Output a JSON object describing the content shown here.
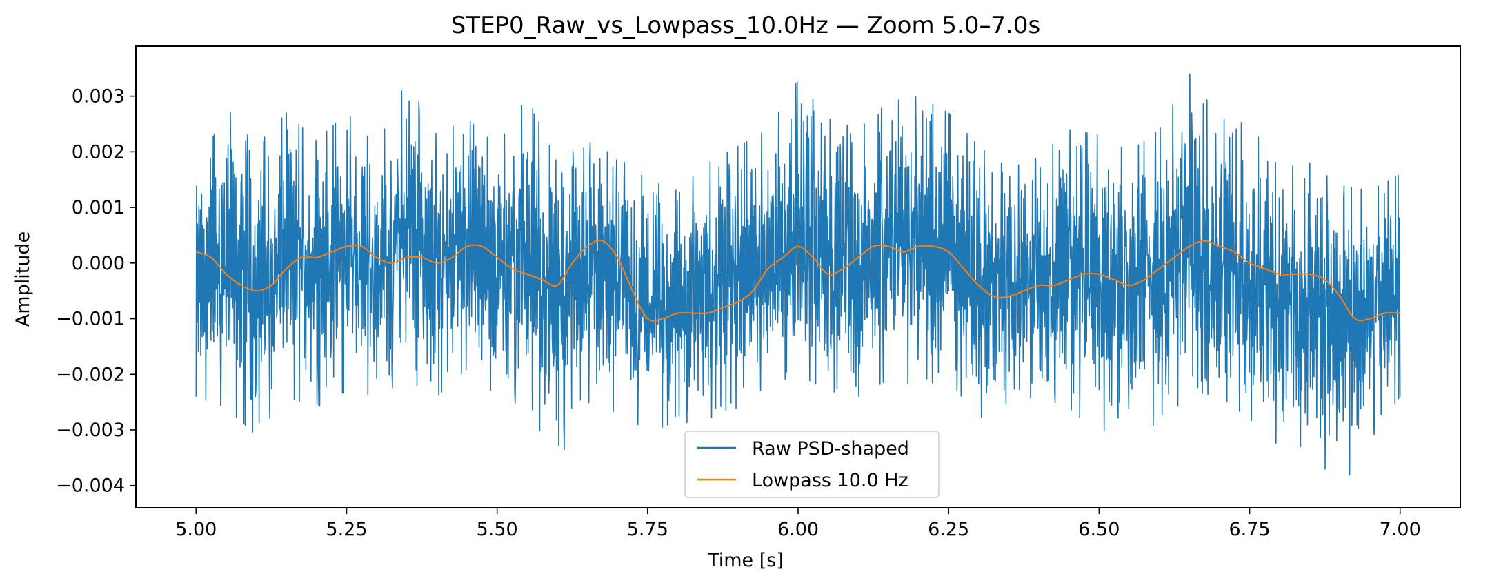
{
  "chart_data": {
    "type": "line",
    "title": "STEP0_Raw_vs_Lowpass_10.0Hz — Zoom 5.0–7.0s",
    "xlabel": "Time [s]",
    "ylabel": "Amplitude",
    "xlim": [
      4.9,
      7.1
    ],
    "ylim": [
      -0.0044,
      0.0039
    ],
    "xticks": [
      5.0,
      5.25,
      5.5,
      5.75,
      6.0,
      6.25,
      6.5,
      6.75,
      7.0
    ],
    "xtick_labels": [
      "5.00",
      "5.25",
      "5.50",
      "5.75",
      "6.00",
      "6.25",
      "6.50",
      "6.75",
      "7.00"
    ],
    "yticks": [
      0.003,
      0.002,
      0.001,
      0.0,
      -0.001,
      -0.002,
      -0.003,
      -0.004
    ],
    "ytick_labels": [
      "0.003",
      "0.002",
      "0.001",
      "0.000",
      "−0.001",
      "−0.002",
      "−0.003",
      "−0.004"
    ],
    "grid": false,
    "legend_position": "bottom-center",
    "series": [
      {
        "name": "Raw PSD-shaped",
        "color": "#1f77b4",
        "style": "noisy-envelope",
        "x": [
          5.0,
          5.05,
          5.1,
          5.15,
          5.2,
          5.25,
          5.3,
          5.35,
          5.4,
          5.45,
          5.5,
          5.55,
          5.6,
          5.65,
          5.7,
          5.75,
          5.8,
          5.85,
          5.9,
          5.95,
          6.0,
          6.05,
          6.1,
          6.15,
          6.2,
          6.25,
          6.3,
          6.35,
          6.4,
          6.45,
          6.5,
          6.55,
          6.6,
          6.65,
          6.7,
          6.75,
          6.8,
          6.85,
          6.9,
          6.95,
          7.0
        ],
        "upper": [
          0.0016,
          0.0028,
          0.0021,
          0.0027,
          0.0022,
          0.0027,
          0.0021,
          0.0033,
          0.0023,
          0.0026,
          0.0021,
          0.003,
          0.0018,
          0.0022,
          0.0019,
          0.0015,
          0.0013,
          0.0018,
          0.0021,
          0.0024,
          0.0033,
          0.0026,
          0.0024,
          0.0029,
          0.003,
          0.0027,
          0.0021,
          0.0017,
          0.0019,
          0.0024,
          0.0023,
          0.002,
          0.0024,
          0.0034,
          0.0026,
          0.0025,
          0.0017,
          0.0018,
          0.0014,
          0.0013,
          0.0016
        ],
        "lower": [
          -0.0024,
          -0.0026,
          -0.0031,
          -0.0024,
          -0.0026,
          -0.0023,
          -0.0024,
          -0.0021,
          -0.0024,
          -0.0019,
          -0.0024,
          -0.0026,
          -0.0036,
          -0.0025,
          -0.0027,
          -0.003,
          -0.0029,
          -0.0028,
          -0.0026,
          -0.0022,
          -0.002,
          -0.0023,
          -0.0024,
          -0.0021,
          -0.0022,
          -0.0021,
          -0.0028,
          -0.0025,
          -0.0024,
          -0.0026,
          -0.0031,
          -0.0026,
          -0.003,
          -0.0023,
          -0.0024,
          -0.0028,
          -0.0033,
          -0.0033,
          -0.0041,
          -0.0032,
          -0.0024
        ]
      },
      {
        "name": "Lowpass 10.0 Hz",
        "color": "#ff7f0e",
        "x": [
          5.0,
          5.025,
          5.05,
          5.075,
          5.1,
          5.125,
          5.15,
          5.175,
          5.2,
          5.225,
          5.25,
          5.275,
          5.3,
          5.325,
          5.35,
          5.375,
          5.4,
          5.425,
          5.45,
          5.475,
          5.5,
          5.525,
          5.55,
          5.575,
          5.6,
          5.625,
          5.65,
          5.675,
          5.7,
          5.725,
          5.75,
          5.775,
          5.8,
          5.825,
          5.85,
          5.875,
          5.9,
          5.925,
          5.95,
          5.975,
          6.0,
          6.025,
          6.05,
          6.075,
          6.1,
          6.125,
          6.15,
          6.175,
          6.2,
          6.225,
          6.25,
          6.275,
          6.3,
          6.325,
          6.35,
          6.375,
          6.4,
          6.425,
          6.45,
          6.475,
          6.5,
          6.525,
          6.55,
          6.575,
          6.6,
          6.625,
          6.65,
          6.675,
          6.7,
          6.725,
          6.75,
          6.775,
          6.8,
          6.825,
          6.85,
          6.875,
          6.9,
          6.925,
          6.95,
          6.975,
          7.0
        ],
        "y": [
          0.0002,
          0.0001,
          -0.0002,
          -0.0004,
          -0.0005,
          -0.0004,
          -0.0001,
          0.0001,
          0.0001,
          0.0002,
          0.0003,
          0.0003,
          0.0001,
          0.0,
          0.0001,
          0.0001,
          0.0,
          0.0001,
          0.0003,
          0.0003,
          0.0001,
          -0.0001,
          -0.0002,
          -0.0003,
          -0.0004,
          0.0,
          0.0003,
          0.0004,
          0.0001,
          -0.0005,
          -0.001,
          -0.001,
          -0.0009,
          -0.0009,
          -0.0009,
          -0.0008,
          -0.0007,
          -0.0005,
          -0.0001,
          0.0001,
          0.0003,
          0.0001,
          -0.0002,
          -0.0001,
          0.0001,
          0.0003,
          0.0003,
          0.0002,
          0.0003,
          0.0003,
          0.0002,
          -0.0001,
          -0.0004,
          -0.0006,
          -0.0006,
          -0.0005,
          -0.0004,
          -0.0004,
          -0.0003,
          -0.0002,
          -0.0002,
          -0.0003,
          -0.0004,
          -0.0003,
          -0.0001,
          0.0001,
          0.0003,
          0.0004,
          0.0003,
          0.0002,
          0.0,
          -0.0001,
          -0.0002,
          -0.0002,
          -0.0002,
          -0.0003,
          -0.0006,
          -0.001,
          -0.001,
          -0.0009,
          -0.0009
        ]
      }
    ]
  }
}
